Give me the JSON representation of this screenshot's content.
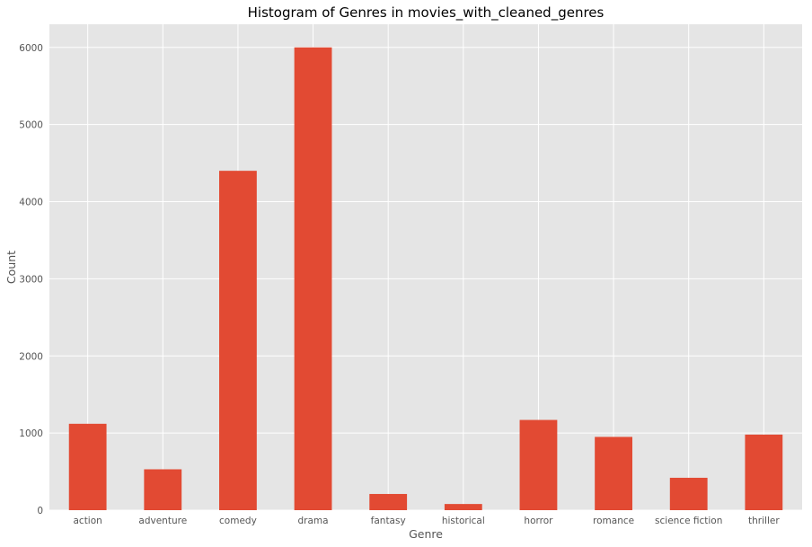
{
  "chart_data": {
    "type": "bar",
    "title": "Histogram of Genres in movies_with_cleaned_genres",
    "xlabel": "Genre",
    "ylabel": "Count",
    "categories": [
      "action",
      "adventure",
      "comedy",
      "drama",
      "fantasy",
      "historical",
      "horror",
      "romance",
      "science fiction",
      "thriller"
    ],
    "values": [
      1120,
      530,
      4400,
      6000,
      210,
      80,
      1170,
      950,
      420,
      980
    ],
    "ylim": [
      0,
      6300
    ],
    "yticks": [
      0,
      1000,
      2000,
      3000,
      4000,
      5000,
      6000
    ],
    "grid": true,
    "colors": {
      "bar": "#e24a33",
      "plot_background": "#e5e5e5",
      "grid": "#ffffff"
    }
  }
}
